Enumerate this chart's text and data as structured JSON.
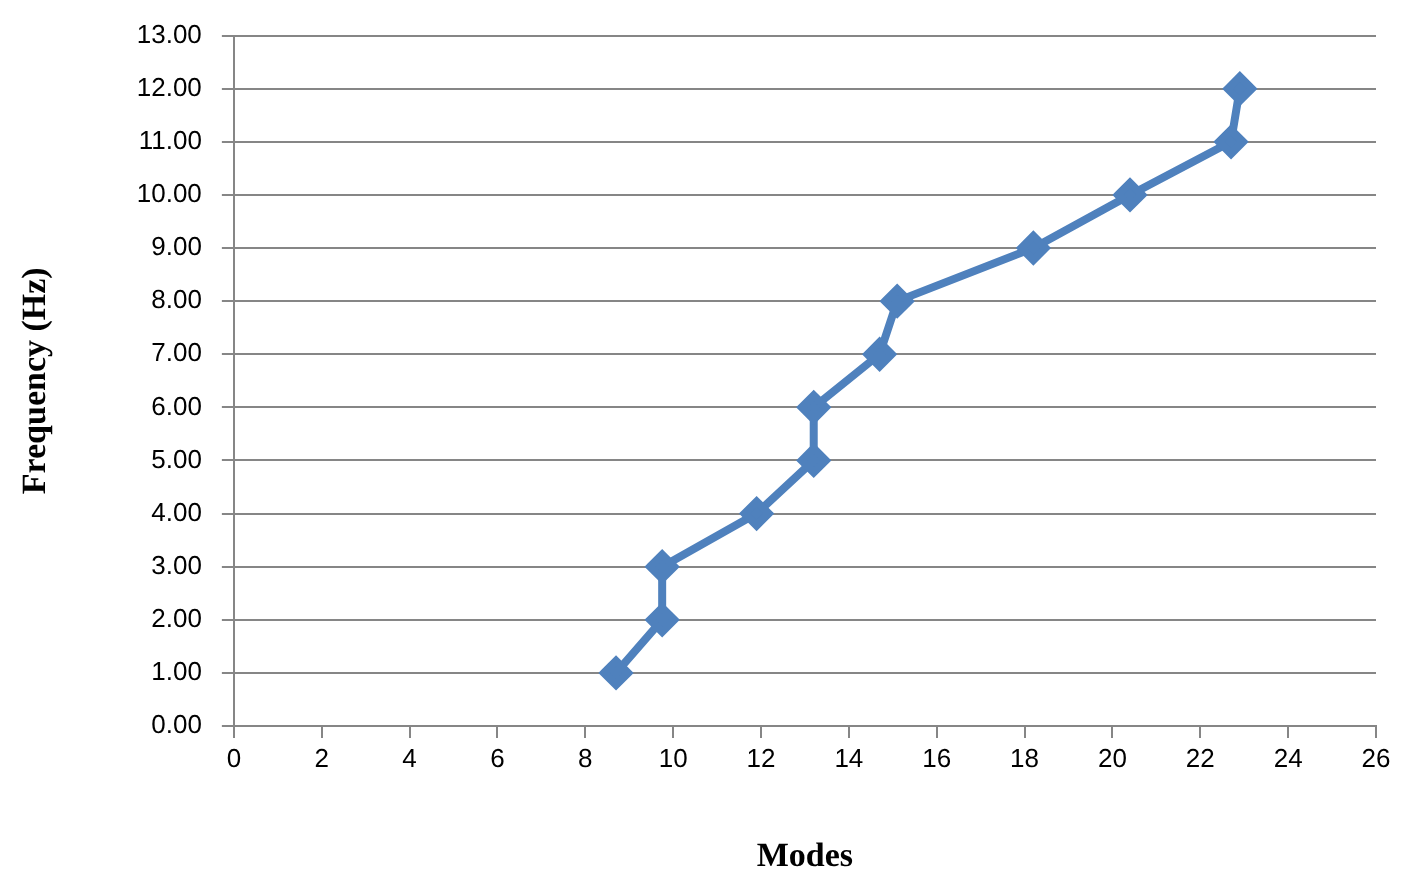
{
  "chart_data": {
    "type": "line",
    "xlabel": "Modes",
    "ylabel": "Frequency (Hz)",
    "series": [
      {
        "color": "#4f81bd",
        "x": [
          8.7,
          9.75,
          9.75,
          11.9,
          13.2,
          13.2,
          14.7,
          15.1,
          18.2,
          20.4,
          22.7,
          22.9
        ],
        "values": [
          1,
          2,
          3,
          4,
          5,
          6,
          7,
          8,
          9,
          10,
          11,
          12
        ]
      }
    ],
    "xlim": [
      0,
      26
    ],
    "xticks": [
      0,
      2,
      4,
      6,
      8,
      10,
      12,
      14,
      16,
      18,
      20,
      22,
      24,
      26
    ],
    "ylim": [
      0,
      13
    ],
    "yticks": [
      {
        "value": 0,
        "label": "0.00"
      },
      {
        "value": 1,
        "label": "1.00"
      },
      {
        "value": 2,
        "label": "2.00"
      },
      {
        "value": 3,
        "label": "3.00"
      },
      {
        "value": 4,
        "label": "4.00"
      },
      {
        "value": 5,
        "label": "5.00"
      },
      {
        "value": 6,
        "label": "6.00"
      },
      {
        "value": 7,
        "label": "7.00"
      },
      {
        "value": 8,
        "label": "8.00"
      },
      {
        "value": 9,
        "label": "9.00"
      },
      {
        "value": 10,
        "label": "10.00"
      },
      {
        "value": 11,
        "label": "11.00"
      },
      {
        "value": 12,
        "label": "12.00"
      },
      {
        "value": 13,
        "label": "13.00"
      }
    ],
    "grid": "y",
    "legend": false,
    "marker": "diamond",
    "line_style": "solid"
  }
}
